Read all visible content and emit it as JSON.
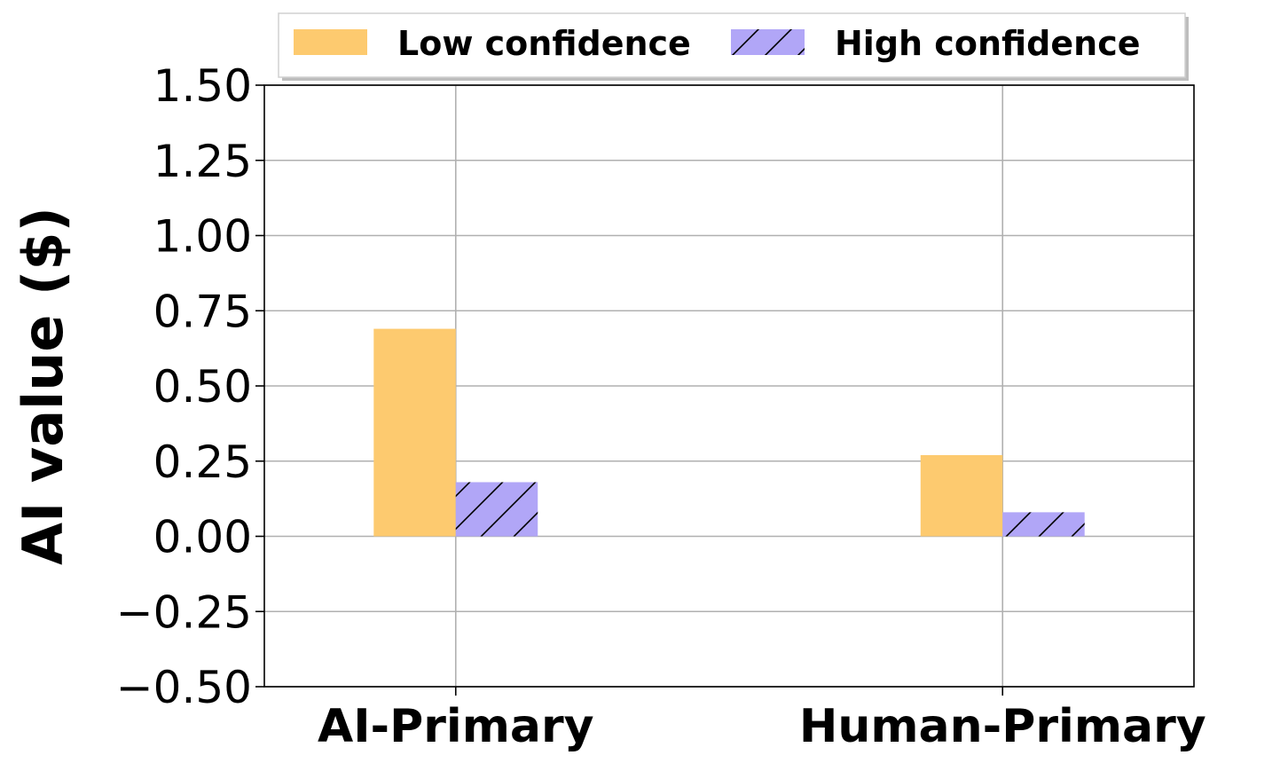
{
  "chart_data": {
    "type": "bar",
    "categories": [
      "AI-Primary",
      "Human-Primary"
    ],
    "series": [
      {
        "name": "Low confidence",
        "values": [
          0.69,
          0.27
        ],
        "color": "#fdca6f",
        "hatch": false
      },
      {
        "name": "High confidence",
        "values": [
          0.18,
          0.08
        ],
        "color": "#b1a6f7",
        "hatch": true
      }
    ],
    "title": "",
    "xlabel": "",
    "ylabel": "AI value ($)",
    "ylim": [
      -0.5,
      1.5
    ],
    "yticks": [
      -0.5,
      -0.25,
      0.0,
      0.25,
      0.5,
      0.75,
      1.0,
      1.25,
      1.5
    ],
    "ytick_labels": [
      "−0.50",
      "−0.25",
      "0.00",
      "0.25",
      "0.50",
      "0.75",
      "1.00",
      "1.25",
      "1.50"
    ],
    "grid": true,
    "legend": "top-center",
    "legend_columns": 2
  }
}
